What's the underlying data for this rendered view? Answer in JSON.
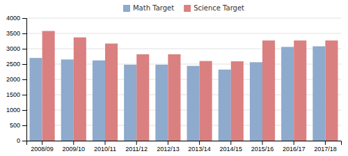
{
  "chart_data": {
    "type": "bar",
    "categories": [
      "2008/09",
      "2009/10",
      "2010/11",
      "2011/12",
      "2012/13",
      "2013/14",
      "2014/15",
      "2015/16",
      "2016/17",
      "2017/18"
    ],
    "series": [
      {
        "name": "Math Target",
        "color": "#8EAACC",
        "values": [
          2700,
          2650,
          2620,
          2480,
          2480,
          2440,
          2320,
          2560,
          3060,
          3080
        ]
      },
      {
        "name": "Science Target",
        "color": "#DA8080",
        "values": [
          3580,
          3370,
          3170,
          2820,
          2820,
          2600,
          2590,
          3270,
          3270,
          3270
        ]
      }
    ],
    "ylim": [
      0,
      4000
    ],
    "yticks": [
      0,
      500,
      1000,
      1500,
      2000,
      2500,
      3000,
      3500,
      4000
    ],
    "grid": true,
    "legend": "top"
  }
}
